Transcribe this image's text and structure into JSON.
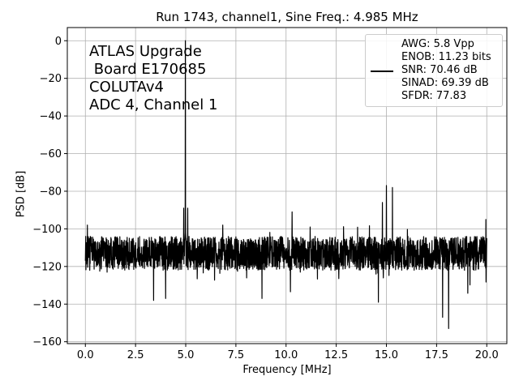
{
  "chart_data": {
    "type": "line",
    "title": "Run 1743, channel1, Sine Freq.: 4.985 MHz",
    "xlabel": "Frequency [MHz]",
    "ylabel": "PSD [dB]",
    "xlim": [
      -0.9,
      21.0
    ],
    "ylim": [
      -161,
      7
    ],
    "xticks": [
      0.0,
      2.5,
      5.0,
      7.5,
      10.0,
      12.5,
      15.0,
      17.5,
      20.0
    ],
    "xtick_labels": [
      "0.0",
      "2.5",
      "5.0",
      "7.5",
      "10.0",
      "12.5",
      "15.0",
      "17.5",
      "20.0"
    ],
    "yticks": [
      0,
      -20,
      -40,
      -60,
      -80,
      -100,
      -120,
      -140,
      -160
    ],
    "ytick_labels": [
      "0",
      "−20",
      "−40",
      "−60",
      "−80",
      "−100",
      "−120",
      "−140",
      "−160"
    ],
    "grid": true,
    "annotation": "ATLAS Upgrade\n Board E170685\nCOLUTAv4\nADC 4, Channel 1",
    "legend_position": "top-right",
    "legend_text": "AWG: 5.8 Vpp\nENOB: 11.23 bits\nSNR: 70.46 dB\nSINAD: 69.39 dB\nSFDR: 77.83",
    "series": [
      {
        "color": "#000000",
        "noise_floor_db": -113,
        "x_range": [
          0.0,
          20.0
        ],
        "peaks": [
          {
            "x": 4.985,
            "y": 0
          },
          {
            "x": 4.9,
            "y": -89
          },
          {
            "x": 5.1,
            "y": -89
          },
          {
            "x": 15.0,
            "y": -77
          },
          {
            "x": 15.3,
            "y": -78
          },
          {
            "x": 14.8,
            "y": -86
          },
          {
            "x": 10.3,
            "y": -91
          },
          {
            "x": 11.2,
            "y": -99
          },
          {
            "x": 19.95,
            "y": -95
          },
          {
            "x": 0.1,
            "y": -98
          }
        ],
        "dips": [
          {
            "x": 18.1,
            "y": -153
          },
          {
            "x": 17.8,
            "y": -147
          },
          {
            "x": 14.6,
            "y": -139
          },
          {
            "x": 3.4,
            "y": -138
          },
          {
            "x": 4.0,
            "y": -137
          },
          {
            "x": 8.8,
            "y": -137
          }
        ]
      }
    ]
  }
}
